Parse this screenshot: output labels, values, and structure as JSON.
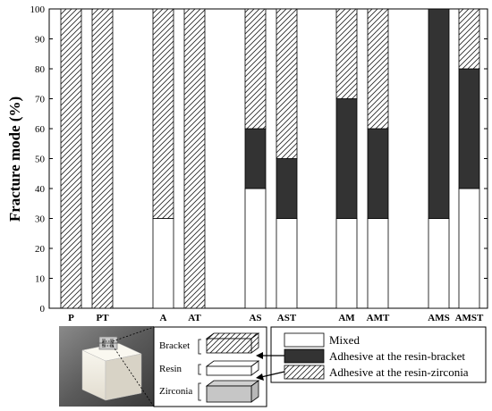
{
  "chart_data": {
    "type": "bar",
    "stacked": true,
    "ylabel": "Fracture mode (%)",
    "xlabel": "",
    "ylim": [
      0,
      100
    ],
    "yticks": [
      0,
      10,
      20,
      30,
      40,
      50,
      60,
      70,
      80,
      90,
      100
    ],
    "grid": false,
    "legend_position": "bottom-right",
    "categories": [
      "P",
      "PT",
      "A",
      "AT",
      "AS",
      "AST",
      "AM",
      "AMT",
      "AMS",
      "AMST"
    ],
    "series": [
      {
        "name": "Mixed",
        "values": [
          0,
          0,
          30,
          0,
          40,
          30,
          30,
          30,
          30,
          40
        ],
        "fill": "white"
      },
      {
        "name": "Adhesive at the resin-bracket",
        "values": [
          0,
          0,
          0,
          0,
          20,
          20,
          40,
          30,
          70,
          40
        ],
        "fill": "#333333"
      },
      {
        "name": "Adhesive at the resin-zirconia",
        "values": [
          100,
          100,
          70,
          100,
          40,
          50,
          30,
          40,
          0,
          20
        ],
        "fill": "hatch"
      }
    ],
    "inset": {
      "labels": [
        "Bracket",
        "Resin",
        "Zirconia"
      ]
    }
  }
}
